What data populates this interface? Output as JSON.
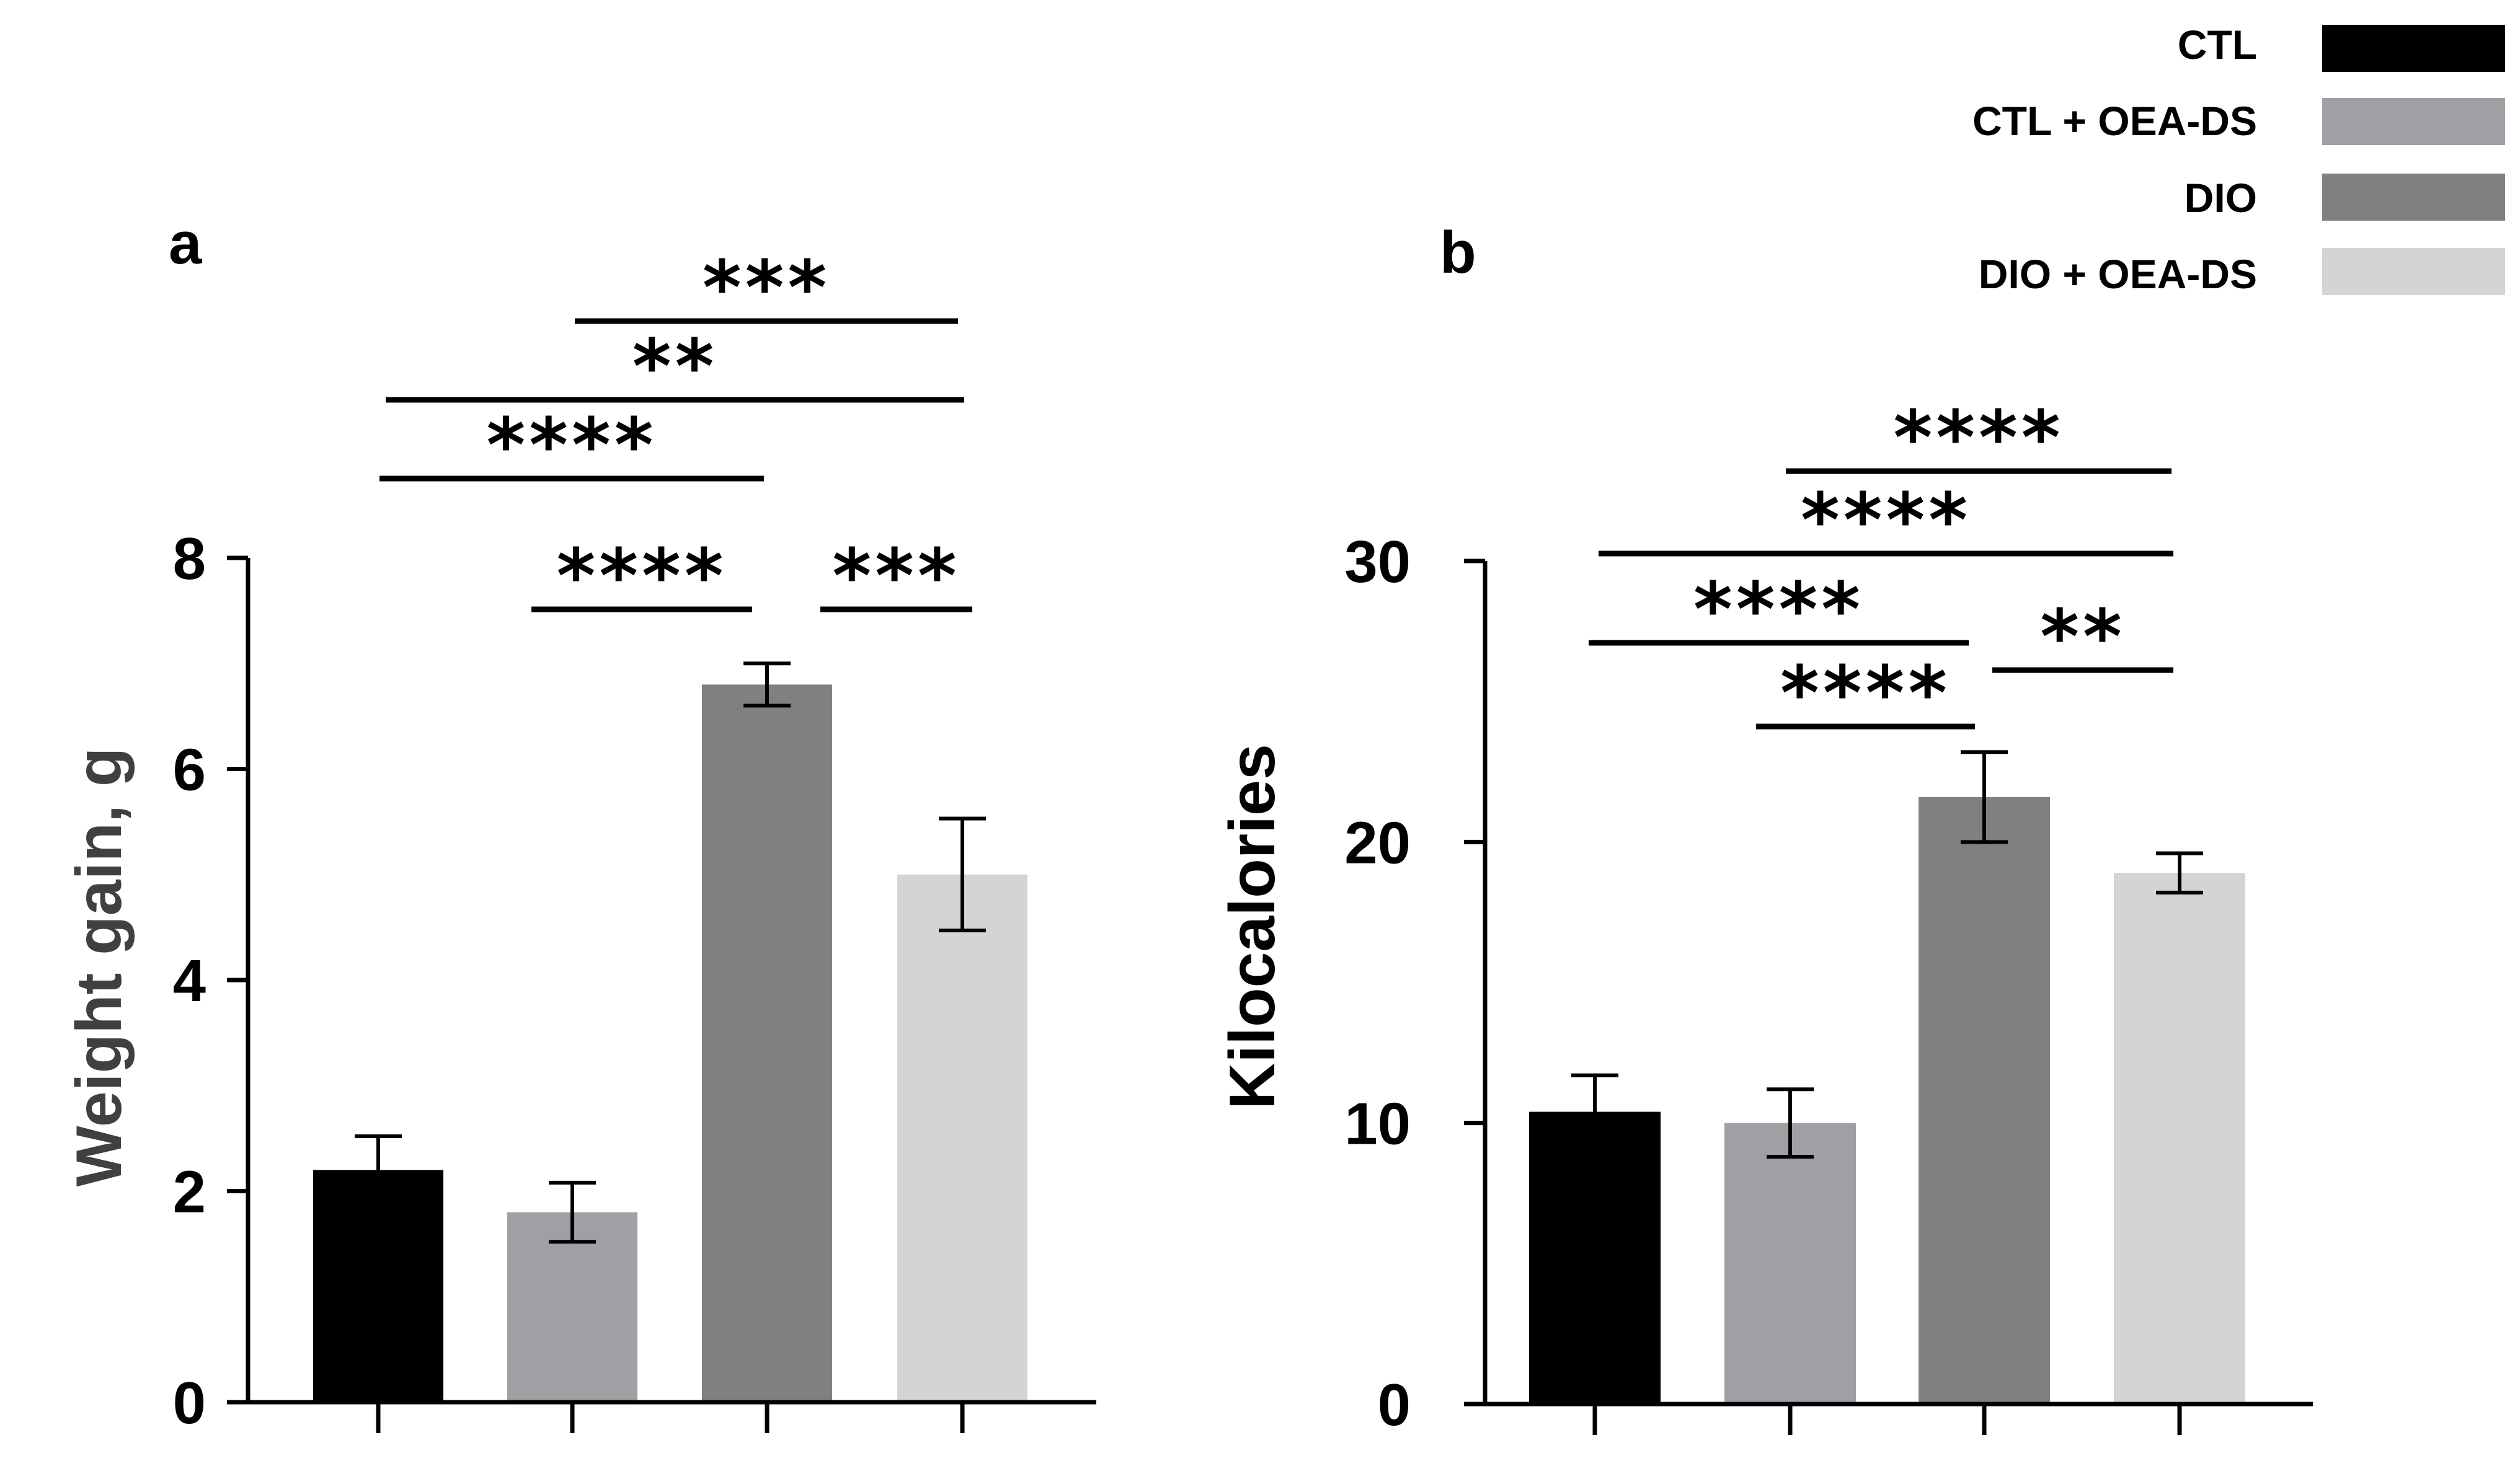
{
  "legend": {
    "items": [
      {
        "label": "CTL",
        "color": "#000000"
      },
      {
        "label": "CTL + OEA-DS",
        "color": "#a0a0a4"
      },
      {
        "label": "DIO",
        "color": "#808080"
      },
      {
        "label": "DIO + OEA-DS",
        "color": "#d4d4d4"
      }
    ]
  },
  "chart_data": [
    {
      "type": "bar",
      "panel": "a",
      "title": "",
      "xlabel": "",
      "ylabel": "Weight gain, g",
      "ylabel_color": "#404040",
      "ylim": [
        0,
        8
      ],
      "yticks": [
        "0",
        "2",
        "4",
        "6",
        "8"
      ],
      "categories": [
        "CTL",
        "CTL + OEA-DS",
        "DIO",
        "DIO + OEA-DS"
      ],
      "values": [
        2.2,
        1.8,
        6.8,
        5.0
      ],
      "errors": [
        0.32,
        0.28,
        0.2,
        0.53
      ],
      "colors": [
        "#000000",
        "#a0a0a4",
        "#808080",
        "#d4d4d4"
      ],
      "significance": [
        {
          "from": 1,
          "to": 3,
          "label": "***"
        },
        {
          "from": 0,
          "to": 3,
          "label": "**"
        },
        {
          "from": 0,
          "to": 2,
          "label": "****"
        },
        {
          "from": 1,
          "to": 2,
          "label": "****"
        },
        {
          "from": 2,
          "to": 3,
          "label": "***"
        }
      ]
    },
    {
      "type": "bar",
      "panel": "b",
      "title": "",
      "xlabel": "",
      "ylabel": "Kilocalories",
      "ylabel_color": "#000000",
      "ylim": [
        0,
        30
      ],
      "yticks": [
        "0",
        "10",
        "20",
        "30"
      ],
      "categories": [
        "CTL",
        "CTL + OEA-DS",
        "DIO",
        "DIO + OEA-DS"
      ],
      "values": [
        10.4,
        10.0,
        21.6,
        18.9
      ],
      "errors": [
        1.3,
        1.2,
        1.6,
        0.7
      ],
      "colors": [
        "#000000",
        "#a0a0a4",
        "#808080",
        "#d4d4d4"
      ],
      "significance": [
        {
          "from": 1,
          "to": 3,
          "label": "****"
        },
        {
          "from": 0,
          "to": 3,
          "label": "****"
        },
        {
          "from": 0,
          "to": 2,
          "label": "****"
        },
        {
          "from": 1,
          "to": 2,
          "label": "****"
        },
        {
          "from": 2,
          "to": 3,
          "label": "**"
        }
      ]
    }
  ]
}
